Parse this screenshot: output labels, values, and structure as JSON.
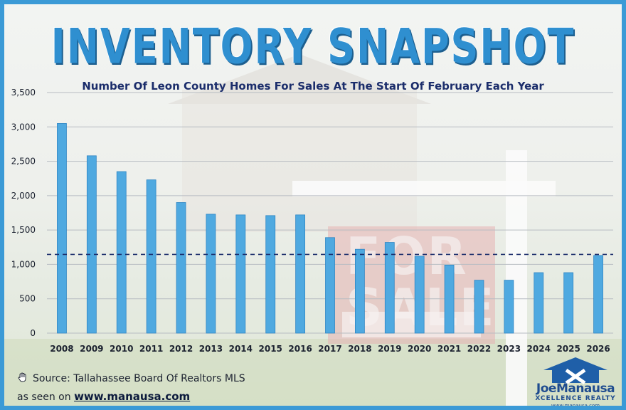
{
  "title": "INVENTORY SNAPSHOT",
  "subtitle": "Number Of Leon County Homes For Sales At The Start Of February Each Year",
  "source": "Source: Tallahassee Board Of Realtors MLS",
  "seen_on_prefix": "as seen on",
  "site": "www.manausa.com",
  "background_sign_text": "FOR SALE",
  "logo": {
    "name_first": "Joe",
    "name_last": "Manausa",
    "tagline": "XCELLENCE REALTY",
    "url": "www.manausa.com",
    "icon": "house-x-logo-icon"
  },
  "colors": {
    "bar": "#4fa9e0",
    "bar_edge": "#2f86c4",
    "title": "#2f8fd0",
    "subtitle": "#1b2d6b",
    "average_line": "#1b2d6b",
    "frame": "#3b9ad6"
  },
  "chart_data": {
    "type": "bar",
    "categories": [
      "2008",
      "2009",
      "2010",
      "2011",
      "2012",
      "2013",
      "2014",
      "2015",
      "2016",
      "2017",
      "2018",
      "2019",
      "2020",
      "2021",
      "2022",
      "2023",
      "2024",
      "2025",
      "2026"
    ],
    "values": [
      3050,
      2580,
      2350,
      2230,
      1900,
      1730,
      1720,
      1710,
      1720,
      1390,
      1220,
      1320,
      1120,
      990,
      770,
      770,
      880,
      880,
      1130
    ],
    "ylim": [
      0,
      3500
    ],
    "yticks": [
      0,
      500,
      1000,
      1500,
      2000,
      2500,
      3000,
      3500
    ],
    "ytick_labels": [
      "0",
      "500",
      "1,000",
      "1,500",
      "2,000",
      "2,500",
      "3,000",
      "3,500"
    ],
    "average_line_value": 1145,
    "grid": true,
    "legend": "none"
  }
}
